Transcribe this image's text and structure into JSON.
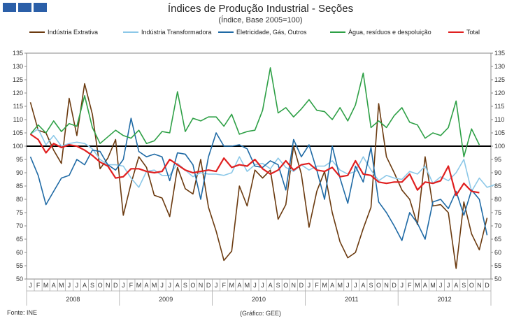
{
  "header": {
    "title": "Índices de Produção Industrial - Seções",
    "subtitle": "(Índice, Base 2005=100)"
  },
  "footer": {
    "source": "Fonte: INE",
    "credit": "(Gráfico: GEE)"
  },
  "chart_data": {
    "type": "line",
    "title": "Índices de Produção Industrial - Seções",
    "subtitle": "(Índice, Base 2005=100)",
    "ylim": [
      50,
      135
    ],
    "yticks": [
      50,
      55,
      60,
      65,
      70,
      75,
      80,
      85,
      90,
      95,
      100,
      105,
      110,
      115,
      120,
      125,
      130,
      135
    ],
    "month_labels": [
      "J",
      "F",
      "M",
      "A",
      "M",
      "J",
      "J",
      "A",
      "S",
      "O",
      "N",
      "D"
    ],
    "years": [
      "2008",
      "2009",
      "2010",
      "2011",
      "2012"
    ],
    "reference_line": 100,
    "legend_position": "top",
    "series": [
      {
        "name": "Indústria Extrativa",
        "color": "#6b3a0f",
        "values": [
          116.5,
          106,
          105,
          98.5,
          93.5,
          118,
          104,
          123.5,
          112,
          91.5,
          95.5,
          102.5,
          74,
          86,
          96,
          92,
          81.5,
          80.5,
          73.5,
          92,
          84,
          82,
          95,
          77,
          68,
          57,
          60.5,
          85,
          77.5,
          91,
          88,
          91,
          72.5,
          78,
          100,
          89.5,
          69.5,
          83,
          90.5,
          75,
          64,
          58,
          60,
          69,
          77,
          116,
          96,
          90,
          83.5,
          80,
          70.5,
          96,
          77.5,
          78,
          75,
          54,
          79,
          67,
          61,
          73
        ]
      },
      {
        "name": "Indústria Transformadora",
        "color": "#8cc8e8",
        "values": [
          104.5,
          106.5,
          100.5,
          104,
          100,
          101,
          101.5,
          101,
          99,
          95,
          93,
          93,
          92.5,
          88,
          84.5,
          90.5,
          91,
          89,
          89,
          93.5,
          91,
          88.5,
          90,
          89.5,
          89.5,
          89,
          90,
          96,
          90.5,
          93,
          93.5,
          91.5,
          95.5,
          92,
          90.5,
          93,
          91,
          92.5,
          92.5,
          94.5,
          91,
          89.5,
          90.5,
          96,
          91,
          87,
          89,
          88,
          87.5,
          90.5,
          89.5,
          92.5,
          86,
          88.5,
          87,
          90,
          95,
          83,
          88,
          84.5,
          85.5
        ]
      },
      {
        "name": "Eletricidade, Gás, Outros",
        "color": "#1f6aa5",
        "values": [
          96,
          89,
          78,
          83,
          88,
          89,
          95,
          93,
          98.5,
          98,
          93,
          91,
          95,
          110.5,
          98,
          96,
          97,
          96,
          87,
          97.5,
          97,
          93,
          80,
          96,
          105,
          100,
          100,
          100.5,
          99,
          92.5,
          92,
          94.5,
          93,
          83.5,
          102.5,
          96,
          100.5,
          91,
          80,
          100,
          88,
          78.5,
          92.5,
          86.5,
          99.5,
          79,
          75,
          70,
          64.5,
          75,
          71,
          65,
          79,
          80,
          76.5,
          83,
          74,
          83.5,
          80,
          66.5
        ]
      },
      {
        "name": "Água, resíduos e despoluição",
        "color": "#2ea046",
        "values": [
          104.5,
          108,
          105,
          109.5,
          105.5,
          108.5,
          107.5,
          119,
          107,
          101,
          103.5,
          106,
          104,
          103,
          106,
          101,
          102,
          105.5,
          105,
          120.5,
          105.5,
          110.5,
          109.5,
          111,
          111,
          107.5,
          112,
          104.5,
          105.5,
          106,
          113.5,
          129.5,
          112.5,
          114.5,
          111,
          114,
          117.5,
          113.5,
          113,
          110,
          114.5,
          109.5,
          115.5,
          127.5,
          107,
          109.5,
          107,
          111.5,
          114.5,
          109,
          108,
          103,
          105,
          104,
          107,
          117,
          96,
          106.5,
          100.5
        ]
      },
      {
        "name": "Total",
        "color": "#e02020",
        "values": [
          104.5,
          102.5,
          97.5,
          101,
          99.5,
          100.5,
          100,
          98.5,
          96.5,
          94,
          92.5,
          88,
          88.5,
          91.5,
          91.5,
          90.5,
          90,
          90.5,
          95,
          93,
          91,
          90,
          90.5,
          91,
          90.5,
          95.5,
          92,
          93,
          92.5,
          95,
          91.5,
          89.5,
          91,
          94.5,
          91,
          93,
          93.5,
          91,
          90.5,
          92,
          88.5,
          89,
          94.5,
          89.5,
          89,
          86.5,
          86,
          86.5,
          86.5,
          89.5,
          83.5,
          86.5,
          86,
          87,
          92.5,
          81.5,
          86,
          83,
          82.5
        ]
      }
    ]
  }
}
